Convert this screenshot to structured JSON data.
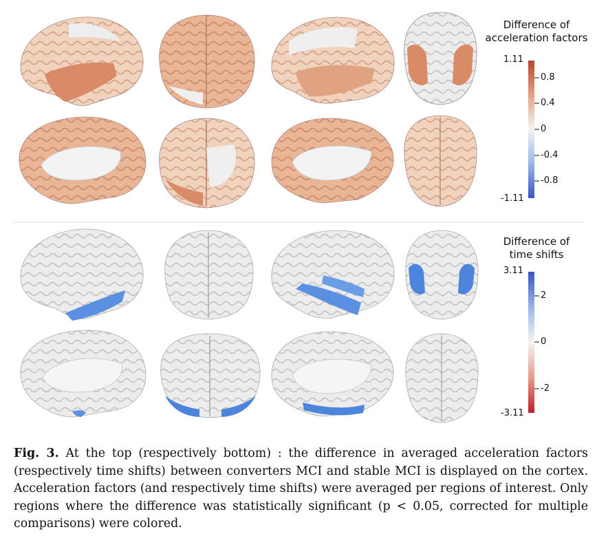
{
  "figure": {
    "top_panel": {
      "colorbar_title": [
        "Difference of",
        "acceleration factors"
      ],
      "colorbar_max": "1.11",
      "colorbar_min": "-1.11",
      "ticks": [
        "0.8",
        "0.4",
        "0",
        "-0.4",
        "-0.8"
      ],
      "colors": {
        "positive": "#c0583b",
        "mid": "#f2f2f2",
        "negative": "#3b5cc8"
      }
    },
    "bottom_panel": {
      "colorbar_title": [
        "Difference of",
        "time shifts"
      ],
      "colorbar_max": "3.11",
      "colorbar_min": "-3.11",
      "ticks": [
        "2",
        "0",
        "-2"
      ],
      "colors": {
        "positive": "#3b5cc8",
        "mid": "#f2f2f2",
        "negative": "#c0283b"
      }
    }
  },
  "caption": {
    "label": "Fig. 3.",
    "text": " At the top (respectively bottom) : the difference in averaged acceleration factors (respectively time shifts) between converters MCI and stable MCI is displayed on the cortex. Acceleration factors (and respectively time shifts) were averaged per regions of interest. Only regions where the difference was statistically significant (p < 0.05, corrected for multiple comparisons) were colored."
  }
}
